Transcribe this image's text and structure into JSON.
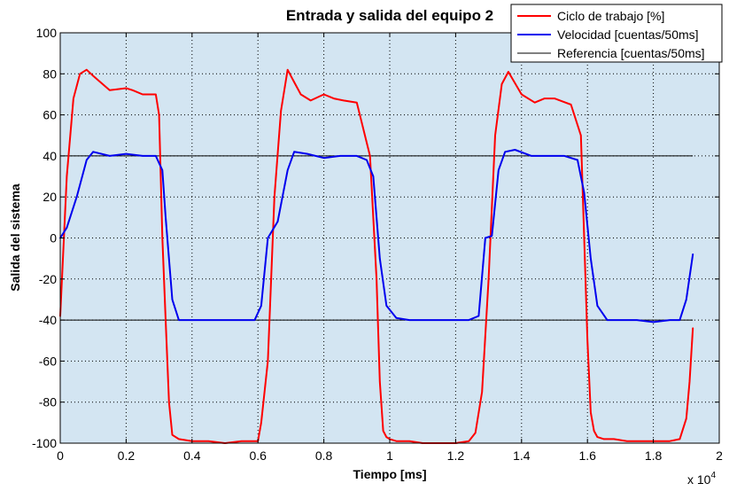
{
  "chart_data": {
    "type": "line",
    "title": "Entrada y salida del equipo 2",
    "xlabel": "Tiempo [ms]",
    "ylabel": "Salida del sistema",
    "x_exponent_label": "x 10",
    "x_exponent_power": "4",
    "xlim": [
      0,
      20000
    ],
    "ylim": [
      -100,
      100
    ],
    "grid": true,
    "legend_position": "top-right",
    "plot_background": "#d3e5f2",
    "xticks": [
      0,
      2000,
      4000,
      6000,
      8000,
      10000,
      12000,
      14000,
      16000,
      18000,
      20000
    ],
    "xtick_labels": [
      "0",
      "0.2",
      "0.4",
      "0.6",
      "0.8",
      "1",
      "1.2",
      "1.4",
      "1.6",
      "1.8",
      "2"
    ],
    "yticks": [
      -100,
      -80,
      -60,
      -40,
      -20,
      0,
      20,
      40,
      60,
      80,
      100
    ],
    "ytick_labels": [
      "-100",
      "-80",
      "-60",
      "-40",
      "-20",
      "0",
      "20",
      "40",
      "60",
      "80",
      "100"
    ],
    "series": [
      {
        "name": "Ciclo de trabajo [%]",
        "color": "#ff0000",
        "x": [
          0,
          200,
          400,
          600,
          800,
          1000,
          1500,
          2000,
          2200,
          2500,
          2900,
          3000,
          3100,
          3200,
          3300,
          3400,
          3600,
          4000,
          4500,
          5000,
          5500,
          6000,
          6100,
          6300,
          6500,
          6700,
          6900,
          7100,
          7300,
          7600,
          8000,
          8300,
          8600,
          9000,
          9400,
          9600,
          9700,
          9800,
          9900,
          10000,
          10200,
          10600,
          11000,
          11500,
          12000,
          12400,
          12600,
          12800,
          13000,
          13200,
          13400,
          13600,
          14000,
          14400,
          14700,
          15000,
          15500,
          15800,
          15900,
          16000,
          16100,
          16200,
          16300,
          16500,
          16800,
          17200,
          17800,
          18000,
          18500,
          18800,
          19000,
          19100,
          19200
        ],
        "y": [
          -38,
          30,
          68,
          80,
          82,
          79,
          72,
          73,
          72,
          70,
          70,
          60,
          0,
          -40,
          -80,
          -96,
          -98,
          -99,
          -99,
          -100,
          -99,
          -99,
          -90,
          -60,
          20,
          62,
          82,
          76,
          70,
          67,
          70,
          68,
          67,
          66,
          40,
          -20,
          -70,
          -94,
          -97,
          -98,
          -99,
          -99,
          -100,
          -100,
          -100,
          -99,
          -95,
          -75,
          -20,
          50,
          75,
          81,
          70,
          66,
          68,
          68,
          65,
          50,
          0,
          -50,
          -85,
          -94,
          -97,
          -98,
          -98,
          -99,
          -99,
          -99,
          -99,
          -98,
          -88,
          -70,
          -44
        ]
      },
      {
        "name": "Velocidad [cuentas/50ms]",
        "color": "#0000ee",
        "x": [
          0,
          200,
          500,
          800,
          1000,
          1500,
          2000,
          2500,
          2900,
          3100,
          3200,
          3400,
          3600,
          4000,
          4500,
          5000,
          5500,
          5900,
          6100,
          6300,
          6600,
          6900,
          7100,
          7500,
          8000,
          8500,
          9000,
          9300,
          9500,
          9700,
          9900,
          10200,
          10600,
          11000,
          11500,
          12000,
          12400,
          12700,
          12900,
          13100,
          13300,
          13500,
          13800,
          14300,
          14800,
          15300,
          15700,
          15900,
          16100,
          16300,
          16600,
          17000,
          17500,
          18000,
          18500,
          18800,
          19000,
          19200
        ],
        "y": [
          0,
          5,
          20,
          38,
          42,
          40,
          41,
          40,
          40,
          33,
          10,
          -30,
          -40,
          -40,
          -40,
          -40,
          -40,
          -40,
          -33,
          0,
          8,
          33,
          42,
          41,
          39,
          40,
          40,
          38,
          30,
          -10,
          -33,
          -39,
          -40,
          -40,
          -40,
          -40,
          -40,
          -38,
          0,
          1,
          33,
          42,
          43,
          40,
          40,
          40,
          38,
          22,
          -10,
          -33,
          -40,
          -40,
          -40,
          -41,
          -40,
          -40,
          -30,
          -8
        ]
      },
      {
        "name": "Referencia [cuentas/50ms]",
        "color": "#000000",
        "x": [
          0,
          3100,
          3100,
          6300,
          6300,
          9700,
          9700,
          12900,
          12900,
          16100,
          16100,
          19200
        ],
        "y": [
          0,
          0,
          -40,
          -40,
          40,
          40,
          -40,
          -40,
          40,
          40,
          -40,
          -40
        ],
        "segments": [
          {
            "x": [
              0,
              19200
            ],
            "y": [
              40,
              40
            ]
          },
          {
            "x": [
              0,
              19200
            ],
            "y": [
              -40,
              -40
            ]
          }
        ]
      }
    ]
  }
}
